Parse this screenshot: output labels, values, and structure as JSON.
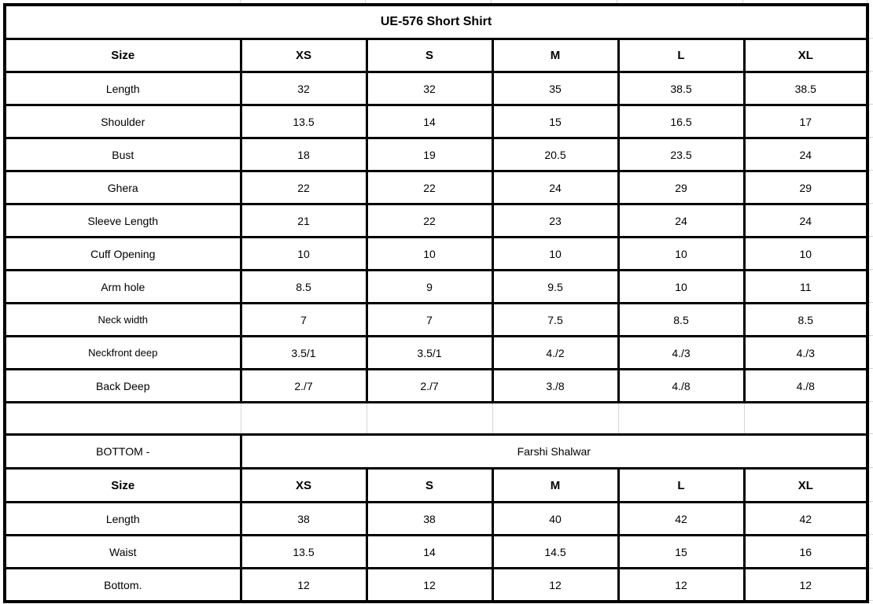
{
  "top_table": {
    "title": "UE-576 Short Shirt",
    "header": [
      "Size",
      "XS",
      "S",
      "M",
      "L",
      "XL"
    ],
    "rows": [
      {
        "label": "Length",
        "values": [
          "32",
          "32",
          "35",
          "38.5",
          "38.5"
        ]
      },
      {
        "label": "Shoulder",
        "values": [
          "13.5",
          "14",
          "15",
          "16.5",
          "17"
        ]
      },
      {
        "label": "Bust",
        "values": [
          "18",
          "19",
          "20.5",
          "23.5",
          "24"
        ]
      },
      {
        "label": "Ghera",
        "values": [
          "22",
          "22",
          "24",
          "29",
          "29"
        ]
      },
      {
        "label": "Sleeve Length",
        "values": [
          "21",
          "22",
          "23",
          "24",
          "24"
        ]
      },
      {
        "label": "Cuff Opening",
        "values": [
          "10",
          "10",
          "10",
          "10",
          "10"
        ]
      },
      {
        "label": "Arm hole",
        "values": [
          "8.5",
          "9",
          "9.5",
          "10",
          "11"
        ]
      },
      {
        "label": "Neck width",
        "values": [
          "7",
          "7",
          "7.5",
          "8.5",
          "8.5"
        ],
        "small": true
      },
      {
        "label": "Neckfront deep",
        "values": [
          "3.5/1",
          "3.5/1",
          "4./2",
          "4./3",
          "4./3"
        ],
        "small": true
      },
      {
        "label": "Back Deep",
        "values": [
          "2./7",
          "2./7",
          "3./8",
          "4./8",
          "4./8"
        ]
      }
    ]
  },
  "bottom_table": {
    "section_label": "BOTTOM -",
    "section_title": "Farshi Shalwar",
    "header": [
      "Size",
      "XS",
      "S",
      "M",
      "L",
      "XL"
    ],
    "rows": [
      {
        "label": "Length",
        "values": [
          "38",
          "38",
          "40",
          "42",
          "42"
        ]
      },
      {
        "label": "Waist",
        "values": [
          "13.5",
          "14",
          "14.5",
          "15",
          "16"
        ]
      },
      {
        "label": "Bottom.",
        "values": [
          "12",
          "12",
          "12",
          "12",
          "12"
        ]
      }
    ]
  },
  "colors": {
    "border": "#000000",
    "background": "#ffffff",
    "gridline": "#d6d6d6",
    "text": "#000000"
  }
}
